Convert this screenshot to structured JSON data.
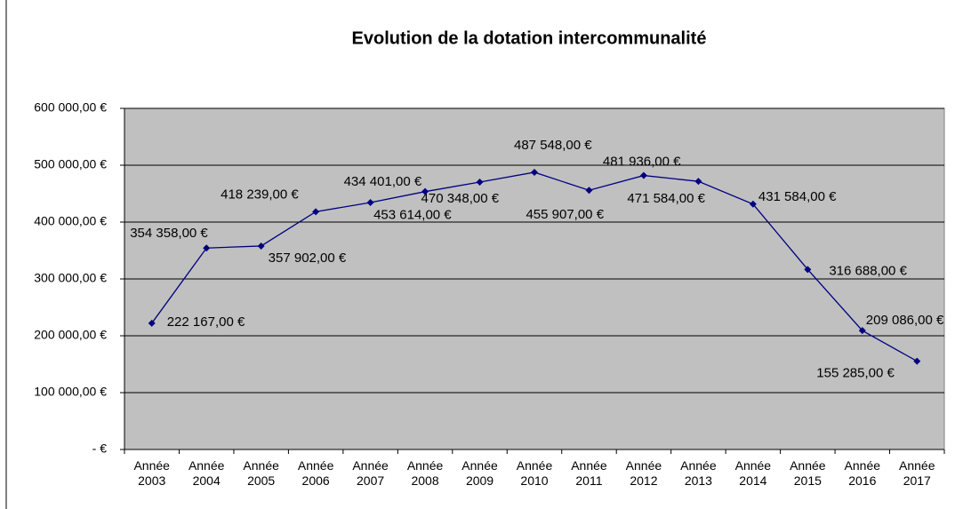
{
  "chart_data": {
    "type": "line",
    "title": "Evolution de la dotation intercommunalité",
    "categories": [
      "Année 2003",
      "Année 2004",
      "Année 2005",
      "Année 2006",
      "Année 2007",
      "Année 2008",
      "Année 2009",
      "Année 2010",
      "Année 2011",
      "Année 2012",
      "Année 2013",
      "Année 2014",
      "Année 2015",
      "Année 2016",
      "Année 2017"
    ],
    "series": [
      {
        "color": "#000080",
        "values": [
          222167,
          354358,
          357902,
          418239,
          434401,
          453614,
          470348,
          487548,
          455907,
          481936,
          471584,
          431584,
          316688,
          209086,
          155285
        ],
        "value_labels": [
          "222 167,00 €",
          "354 358,00 €",
          "357 902,00 €",
          "418 239,00 €",
          "434 401,00 €",
          "453 614,00 €",
          "470 348,00 €",
          "487 548,00 €",
          "455 907,00 €",
          "481 936,00 €",
          "471 584,00 €",
          "431 584,00 €",
          "316 688,00 €",
          "209 086,00 €",
          "155 285,00 €"
        ]
      }
    ],
    "ylim": [
      0,
      600000
    ],
    "yticks": [
      {
        "value": 0,
        "label": "-   €"
      },
      {
        "value": 100000,
        "label": "100 000,00 €"
      },
      {
        "value": 200000,
        "label": "200 000,00 €"
      },
      {
        "value": 300000,
        "label": "300 000,00 €"
      },
      {
        "value": 400000,
        "label": "400 000,00 €"
      },
      {
        "value": 500000,
        "label": "500 000,00 €"
      },
      {
        "value": 600000,
        "label": "600 000,00 €"
      }
    ],
    "grid": true
  }
}
